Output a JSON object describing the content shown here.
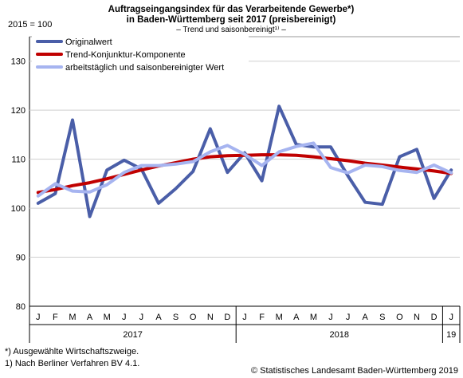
{
  "chart_data": {
    "type": "line",
    "title_line1": "Auftragseingangsindex für das Verarbeitende Gewerbe*)",
    "title_line2": "in Baden-Württemberg seit 2017 (preisbereinigt)",
    "subtitle": "– Trend und saisonbereinigt¹⁾ –",
    "ylabel": "2015 = 100",
    "ylim": [
      80,
      135
    ],
    "yticks": [
      80,
      90,
      100,
      110,
      120,
      130
    ],
    "grid": true,
    "legend_position": "top-left",
    "months": [
      "J",
      "F",
      "M",
      "A",
      "M",
      "J",
      "J",
      "A",
      "S",
      "O",
      "N",
      "D",
      "J",
      "F",
      "M",
      "A",
      "M",
      "J",
      "J",
      "A",
      "S",
      "O",
      "N",
      "D",
      "J"
    ],
    "year_labels": [
      "2017",
      "2018",
      "19"
    ],
    "series": [
      {
        "name": "Originalwert",
        "color": "#4a5ea8",
        "values": [
          101.0,
          103.0,
          118.0,
          98.3,
          107.8,
          109.8,
          108.0,
          101.0,
          104.0,
          107.5,
          116.2,
          107.3,
          111.3,
          105.6,
          120.8,
          113.0,
          112.5,
          112.5,
          106.6,
          101.2,
          100.8,
          110.5,
          112.0,
          102.0,
          107.8
        ]
      },
      {
        "name": "Trend-Konjunktur-Komponente",
        "color": "#c00000",
        "values": [
          103.2,
          103.8,
          104.6,
          105.2,
          106.0,
          106.9,
          107.8,
          108.6,
          109.3,
          110.0,
          110.5,
          110.7,
          110.8,
          110.9,
          110.9,
          110.8,
          110.5,
          110.1,
          109.7,
          109.2,
          108.8,
          108.4,
          108.0,
          107.6,
          107.1
        ]
      },
      {
        "name": "arbeitstäglich und saisonbereinigter Wert",
        "color": "#a6b4f0",
        "values": [
          102.5,
          105.0,
          103.5,
          103.3,
          104.8,
          107.3,
          108.7,
          108.7,
          109.0,
          109.5,
          111.5,
          112.8,
          111.0,
          108.7,
          111.5,
          112.6,
          113.3,
          108.3,
          107.2,
          108.8,
          108.5,
          107.7,
          107.3,
          108.8,
          107.2
        ]
      }
    ]
  },
  "footnotes": [
    "*) Ausgewählte Wirtschaftszweige.",
    "1) Nach Berliner Verfahren BV 4.1."
  ],
  "copyright": "© Statistisches Landesamt Baden-Württemberg 2019"
}
